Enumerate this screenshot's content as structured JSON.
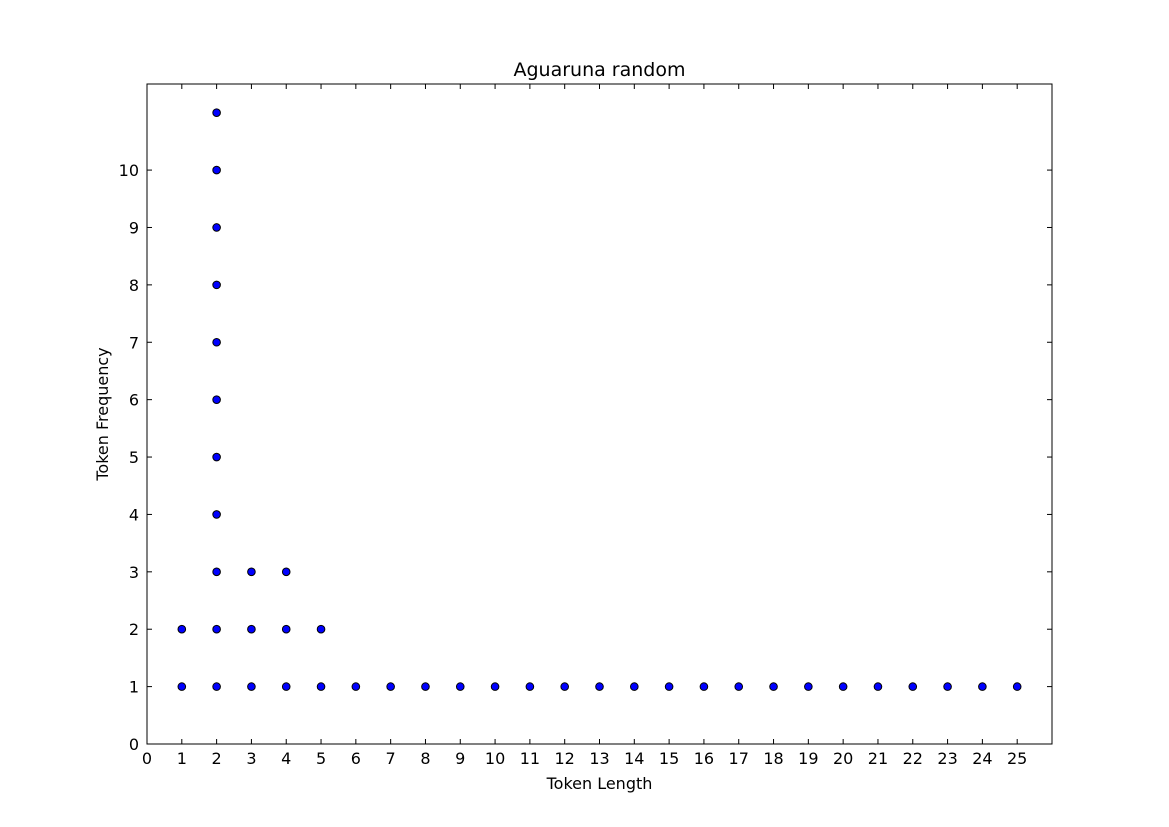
{
  "chart_data": {
    "type": "scatter",
    "title": "Aguaruna random",
    "xlabel": "Token Length",
    "ylabel": "Token Frequency",
    "xlim": [
      0,
      26
    ],
    "ylim": [
      0,
      11.5
    ],
    "xticks": [
      0,
      1,
      2,
      3,
      4,
      5,
      6,
      7,
      8,
      9,
      10,
      11,
      12,
      13,
      14,
      15,
      16,
      17,
      18,
      19,
      20,
      21,
      22,
      23,
      24,
      25
    ],
    "yticks": [
      0,
      1,
      2,
      3,
      4,
      5,
      6,
      7,
      8,
      9,
      10
    ],
    "grid": false,
    "marker_color": "#0000ff",
    "marker_edge_color": "#000000",
    "series": [
      {
        "x": [
          1,
          1,
          2,
          2,
          2,
          2,
          2,
          2,
          2,
          2,
          2,
          2,
          2,
          3,
          3,
          3,
          4,
          4,
          4,
          5,
          5,
          6,
          7,
          8,
          9,
          10,
          11,
          12,
          13,
          14,
          15,
          16,
          17,
          18,
          19,
          20,
          21,
          22,
          23,
          24,
          25
        ],
        "y": [
          1,
          2,
          1,
          2,
          3,
          4,
          5,
          6,
          7,
          8,
          9,
          10,
          11,
          1,
          2,
          3,
          1,
          2,
          3,
          1,
          2,
          1,
          1,
          1,
          1,
          1,
          1,
          1,
          1,
          1,
          1,
          1,
          1,
          1,
          1,
          1,
          1,
          1,
          1,
          1,
          1
        ]
      }
    ]
  }
}
